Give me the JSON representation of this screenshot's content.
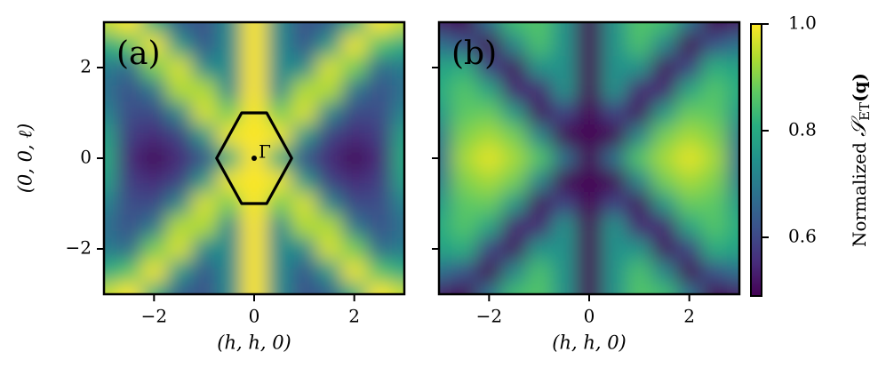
{
  "chart_data": [
    {
      "type": "heatmap",
      "label": "(a)",
      "label_color": "#000000",
      "colormap": "viridis",
      "x": [
        -3,
        -2.5,
        -2,
        -1.5,
        -1,
        -0.5,
        0,
        0.5,
        1,
        1.5,
        2,
        2.5,
        3
      ],
      "y": [
        3,
        2.5,
        2,
        1.5,
        1,
        0.5,
        0,
        -0.5,
        -1,
        -1.5,
        -2,
        -2.5,
        -3
      ],
      "values": [
        [
          0.95,
          1.0,
          0.8,
          0.64,
          0.62,
          0.73,
          1.0,
          0.73,
          0.62,
          0.64,
          0.8,
          1.0,
          0.95
        ],
        [
          0.8,
          0.86,
          0.99,
          0.76,
          0.63,
          0.73,
          1.0,
          0.73,
          0.63,
          0.76,
          0.99,
          0.86,
          0.8
        ],
        [
          0.7,
          0.67,
          0.89,
          0.97,
          0.73,
          0.73,
          1.0,
          0.73,
          0.73,
          0.97,
          0.89,
          0.67,
          0.7
        ],
        [
          0.68,
          0.62,
          0.69,
          0.94,
          0.94,
          0.73,
          1.0,
          0.73,
          0.94,
          0.94,
          0.69,
          0.62,
          0.68
        ],
        [
          0.72,
          0.61,
          0.6,
          0.72,
          0.97,
          0.89,
          1.0,
          0.89,
          0.97,
          0.72,
          0.6,
          0.61,
          0.72
        ],
        [
          0.78,
          0.58,
          0.55,
          0.59,
          0.76,
          0.99,
          1.0,
          0.99,
          0.76,
          0.59,
          0.55,
          0.58,
          0.78
        ],
        [
          0.8,
          0.55,
          0.5,
          0.55,
          0.62,
          0.8,
          1.0,
          0.8,
          0.62,
          0.55,
          0.5,
          0.55,
          0.8
        ],
        [
          0.78,
          0.58,
          0.55,
          0.59,
          0.76,
          0.99,
          1.0,
          0.99,
          0.76,
          0.59,
          0.55,
          0.58,
          0.78
        ],
        [
          0.72,
          0.61,
          0.6,
          0.72,
          0.97,
          0.89,
          1.0,
          0.89,
          0.97,
          0.72,
          0.6,
          0.61,
          0.72
        ],
        [
          0.68,
          0.62,
          0.69,
          0.94,
          0.94,
          0.73,
          1.0,
          0.73,
          0.94,
          0.94,
          0.69,
          0.62,
          0.68
        ],
        [
          0.7,
          0.67,
          0.89,
          0.97,
          0.73,
          0.73,
          1.0,
          0.73,
          0.73,
          0.97,
          0.89,
          0.67,
          0.7
        ],
        [
          0.8,
          0.86,
          0.99,
          0.76,
          0.63,
          0.73,
          1.0,
          0.73,
          0.63,
          0.76,
          0.99,
          0.86,
          0.8
        ],
        [
          0.95,
          1.0,
          0.8,
          0.64,
          0.62,
          0.73,
          1.0,
          0.73,
          0.62,
          0.64,
          0.8,
          1.0,
          0.95
        ]
      ],
      "xlim": [
        -3,
        3
      ],
      "ylim": [
        -3,
        3
      ],
      "xticks": [
        {
          "value": -2,
          "label": "−2"
        },
        0,
        2
      ],
      "yticks": [
        {
          "value": -2,
          "label": "−2"
        },
        0,
        2
      ],
      "show_ytick_labels": true,
      "xlabel": "(h, h, 0)",
      "ylabel": "(0, 0, ℓ)",
      "hexagon": [
        [
          -0.25,
          1
        ],
        [
          0.25,
          1
        ],
        [
          0.75,
          0
        ],
        [
          0.25,
          -1
        ],
        [
          -0.25,
          -1
        ],
        [
          -0.75,
          0
        ]
      ],
      "point": [
        0,
        0
      ],
      "point_label": "Γ"
    },
    {
      "type": "heatmap",
      "label": "(b)",
      "label_color": "#ffffff",
      "colormap": "viridis",
      "x": [
        -3,
        -2.5,
        -2,
        -1.5,
        -1,
        -0.5,
        0,
        0.5,
        1,
        1.5,
        2,
        2.5,
        3
      ],
      "y": [
        3,
        2.5,
        2,
        1.5,
        1,
        0.5,
        0,
        -0.5,
        -1,
        -1.5,
        -2,
        -2.5,
        -3
      ],
      "values": [
        [
          0.53,
          0.49,
          0.68,
          0.84,
          0.86,
          0.75,
          0.49,
          0.75,
          0.86,
          0.84,
          0.68,
          0.49,
          0.53
        ],
        [
          0.68,
          0.62,
          0.49,
          0.72,
          0.85,
          0.75,
          0.49,
          0.75,
          0.85,
          0.72,
          0.49,
          0.62,
          0.68
        ],
        [
          0.78,
          0.81,
          0.59,
          0.51,
          0.75,
          0.75,
          0.49,
          0.75,
          0.75,
          0.51,
          0.59,
          0.81,
          0.78
        ],
        [
          0.8,
          0.86,
          0.79,
          0.54,
          0.54,
          0.75,
          0.49,
          0.75,
          0.54,
          0.54,
          0.79,
          0.86,
          0.8
        ],
        [
          0.76,
          0.87,
          0.88,
          0.76,
          0.51,
          0.59,
          0.49,
          0.59,
          0.51,
          0.76,
          0.88,
          0.87,
          0.76
        ],
        [
          0.7,
          0.9,
          0.93,
          0.89,
          0.72,
          0.49,
          0.49,
          0.49,
          0.72,
          0.89,
          0.93,
          0.9,
          0.7
        ],
        [
          0.68,
          0.93,
          0.98,
          0.93,
          0.86,
          0.68,
          0.49,
          0.68,
          0.86,
          0.93,
          0.98,
          0.93,
          0.68
        ],
        [
          0.7,
          0.9,
          0.93,
          0.89,
          0.72,
          0.49,
          0.49,
          0.49,
          0.72,
          0.89,
          0.93,
          0.9,
          0.7
        ],
        [
          0.76,
          0.87,
          0.88,
          0.76,
          0.51,
          0.59,
          0.49,
          0.59,
          0.51,
          0.76,
          0.88,
          0.87,
          0.76
        ],
        [
          0.8,
          0.86,
          0.79,
          0.54,
          0.54,
          0.75,
          0.49,
          0.75,
          0.54,
          0.54,
          0.79,
          0.86,
          0.8
        ],
        [
          0.78,
          0.81,
          0.59,
          0.51,
          0.75,
          0.75,
          0.49,
          0.75,
          0.75,
          0.51,
          0.59,
          0.81,
          0.78
        ],
        [
          0.68,
          0.62,
          0.49,
          0.72,
          0.85,
          0.75,
          0.49,
          0.75,
          0.85,
          0.72,
          0.49,
          0.62,
          0.68
        ],
        [
          0.53,
          0.49,
          0.68,
          0.84,
          0.86,
          0.75,
          0.49,
          0.75,
          0.86,
          0.84,
          0.68,
          0.49,
          0.53
        ]
      ],
      "xlim": [
        -3,
        3
      ],
      "ylim": [
        -3,
        3
      ],
      "xticks": [
        {
          "value": -2,
          "label": "−2"
        },
        0,
        2
      ],
      "yticks": [
        -2,
        0,
        2
      ],
      "show_ytick_labels": false,
      "xlabel": "(h, h, 0)"
    }
  ],
  "colorbar": {
    "colormap": "viridis",
    "lim": [
      0.49,
      1.0
    ],
    "ticks": [
      0.6,
      0.8,
      {
        "value": 1,
        "label": "1.0"
      }
    ],
    "label": {
      "text": "Normalized ",
      "symbol": "𝒮",
      "subscript": "ET",
      "argument": "(q)"
    }
  }
}
